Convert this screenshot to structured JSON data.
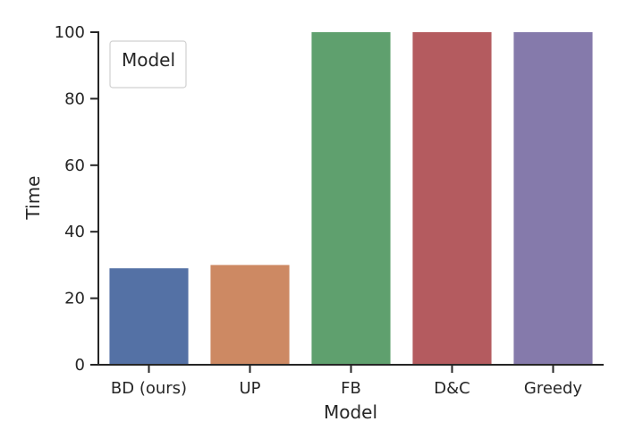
{
  "chart_data": {
    "type": "bar",
    "title": "",
    "xlabel": "Model",
    "ylabel": "Time",
    "categories": [
      "BD (ours)",
      "UP",
      "FB",
      "D&C",
      "Greedy"
    ],
    "values": [
      29,
      30,
      100,
      100,
      100
    ],
    "colors": [
      "#5471a5",
      "#cd8963",
      "#5fa06e",
      "#b45b5f",
      "#857aab"
    ],
    "ylim": [
      0,
      100
    ],
    "yticks": [
      0,
      20,
      40,
      60,
      80,
      100
    ],
    "grid": false,
    "legend": {
      "title": "Model",
      "placement": "top-left"
    }
  }
}
